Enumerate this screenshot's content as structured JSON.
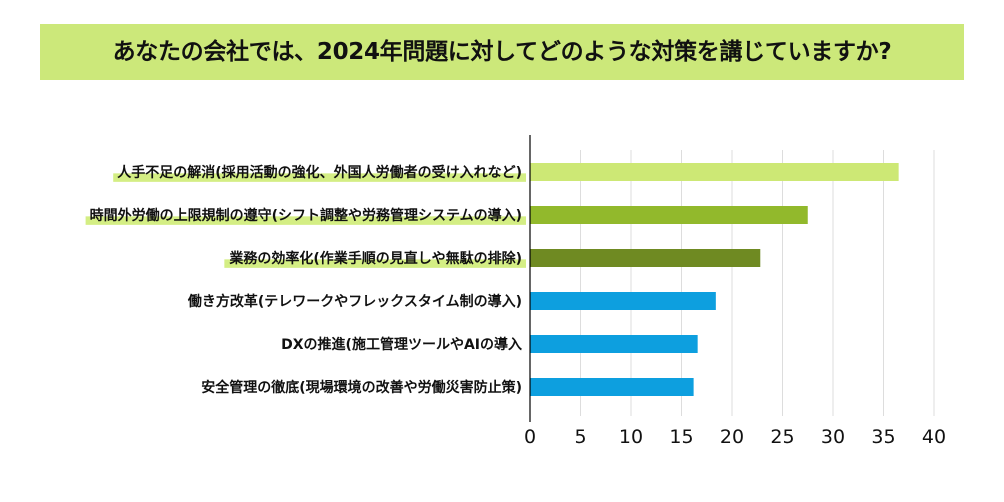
{
  "title": "あなたの会社では、2024年問題に対してどのような対策を講じていますか?",
  "chart_data": {
    "type": "bar",
    "orientation": "horizontal",
    "title": "あなたの会社では、2024年問題に対してどのような対策を講じていますか?",
    "xlabel": "",
    "ylabel": "",
    "xlim": [
      0,
      40
    ],
    "xticks": [
      0,
      5,
      10,
      15,
      20,
      25,
      30,
      35,
      40
    ],
    "grid": "vertical",
    "legend": "none",
    "categories": [
      "人手不足の解消(採用活動の強化、外国人労働者の受け入れなど)",
      "時間外労働の上限規制の遵守(シフト調整や労務管理システムの導入)",
      "業務の効率化(作業手順の見直しや無駄の排除)",
      "働き方改革(テレワークやフレックスタイム制の導入)",
      "DXの推進(施工管理ツールやAIの導入",
      "安全管理の徹底(現場環境の改善や労働災害防止策)"
    ],
    "values": [
      36.5,
      27.5,
      22.8,
      18.4,
      16.6,
      16.2
    ],
    "colors": [
      "#cde875",
      "#92b92c",
      "#6f8a22",
      "#0d9fdf",
      "#0d9fdf",
      "#0d9fdf"
    ],
    "highlighted": [
      true,
      true,
      true,
      false,
      false,
      false
    ],
    "highlight_color": "#d4ee84"
  }
}
